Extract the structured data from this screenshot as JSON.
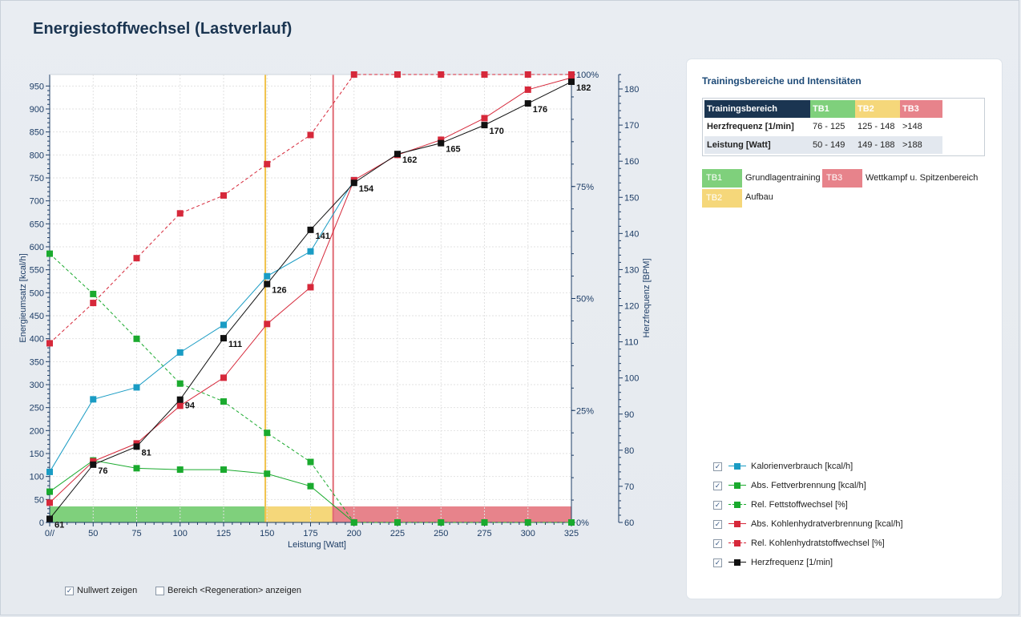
{
  "page": {
    "title": "Energiestoffwechsel (Lastverlauf)"
  },
  "chart_data": {
    "type": "line",
    "x": [
      0,
      50,
      75,
      100,
      125,
      150,
      175,
      200,
      225,
      250,
      275,
      300,
      325
    ],
    "x_tick_labels": [
      "0//",
      "50",
      "75",
      "100",
      "125",
      "150",
      "175",
      "200",
      "225",
      "250",
      "275",
      "300",
      "325"
    ],
    "xlabel": "Leistung [Watt]",
    "ylabel_left": "Energieumsatz [kcal/h]",
    "ylabel_right": "Herzfrequenz [BPM]",
    "ylim_left": [
      0,
      975
    ],
    "left_ticks": [
      "0",
      "50",
      "100",
      "150",
      "200",
      "250",
      "300",
      "350",
      "400",
      "450",
      "500",
      "550",
      "600",
      "650",
      "700",
      "750",
      "800",
      "850",
      "900",
      "950"
    ],
    "ylim_percent": [
      0,
      100
    ],
    "percent_ticks": [
      "0%",
      "25%",
      "50%",
      "75%",
      "100%"
    ],
    "ylim_hr": [
      60,
      184
    ],
    "hr_ticks": [
      "60",
      "70",
      "80",
      "90",
      "100",
      "110",
      "120",
      "130",
      "140",
      "150",
      "160",
      "170",
      "180"
    ],
    "grid": true,
    "zones": [
      {
        "name": "TB1",
        "from": 0,
        "to": 149,
        "color": "#7fd07c"
      },
      {
        "name": "TB2",
        "from": 149,
        "to": 188,
        "color": "#f5d77a"
      },
      {
        "name": "TB3",
        "from": 188,
        "to": 325,
        "color": "#e7838b"
      }
    ],
    "series": [
      {
        "name": "Kalorienverbrauch [kcal/h]",
        "axis": "left",
        "color": "#1a9cc4",
        "dashed": false,
        "x": [
          0,
          50,
          75,
          100,
          125,
          150,
          175,
          200
        ],
        "values": [
          110,
          268,
          294,
          370,
          430,
          536,
          590,
          745
        ]
      },
      {
        "name": "Abs. Fettverbrennung [kcal/h]",
        "axis": "left",
        "color": "#1aaa2e",
        "dashed": false,
        "x": [
          0,
          50,
          75,
          100,
          125,
          150,
          175,
          200
        ],
        "values": [
          67,
          135,
          118,
          115,
          115,
          106,
          79,
          0
        ]
      },
      {
        "name": "Rel. Fettstoffwechsel [%]",
        "axis": "percent",
        "color": "#1aaa2e",
        "dashed": true,
        "x": [
          0,
          50,
          75,
          100,
          125,
          150,
          175,
          200,
          225,
          250,
          275,
          300,
          325
        ],
        "values": [
          60,
          51,
          41,
          31,
          27,
          20,
          13.5,
          0,
          0,
          0,
          0,
          0,
          0
        ]
      },
      {
        "name": "Abs. Kohlenhydratverbrennung [kcal/h]",
        "axis": "left",
        "color": "#d6283a",
        "dashed": false,
        "x": [
          0,
          50,
          75,
          100,
          125,
          150,
          175,
          200,
          225,
          250,
          275,
          300,
          325
        ],
        "values": [
          43,
          133,
          172,
          254,
          315,
          432,
          512,
          745,
          800,
          833,
          880,
          942,
          968
        ]
      },
      {
        "name": "Rel. Kohlenhydratstoffwechsel [%]",
        "axis": "percent",
        "color": "#d6283a",
        "dashed": true,
        "x": [
          0,
          50,
          75,
          100,
          125,
          150,
          175,
          200,
          225,
          250,
          275,
          300,
          325
        ],
        "values": [
          40,
          49,
          59,
          69,
          73,
          80,
          86.5,
          100,
          100,
          100,
          100,
          100,
          100
        ]
      },
      {
        "name": "Herzfrequenz [1/min]",
        "axis": "hr",
        "color": "#111111",
        "dashed": false,
        "x": [
          0,
          50,
          75,
          100,
          125,
          150,
          175,
          200,
          225,
          250,
          275,
          300,
          325
        ],
        "values": [
          61,
          76,
          81,
          94,
          111,
          126,
          141,
          154,
          162,
          165,
          170,
          176,
          182
        ]
      }
    ]
  },
  "bottom_options": [
    {
      "label": "Nullwert zeigen",
      "checked": true
    },
    {
      "label": "Bereich <Regeneration> anzeigen",
      "checked": false
    }
  ],
  "panel": {
    "title": "Trainingsbereiche und Intensitäten",
    "table": {
      "header": [
        "Trainingsbereich",
        "TB1",
        "TB2",
        "TB3"
      ],
      "rows": [
        [
          "Herzfrequenz [1/min]",
          "76 - 125",
          "125 - 148",
          ">148"
        ],
        [
          "Leistung [Watt]",
          "50 - 149",
          "149 - 188",
          ">188"
        ]
      ]
    },
    "zone_legend": [
      {
        "code": "TB1",
        "label": "Grundlagentraining",
        "color": "#7fd07c"
      },
      {
        "code": "TB3",
        "label": "Wettkampf u. Spitzenbereich",
        "color": "#e7838b"
      },
      {
        "code": "TB2",
        "label": "Aufbau",
        "color": "#f5d77a"
      }
    ],
    "series_legend": [
      {
        "label": "Kalorienverbrauch [kcal/h]",
        "checked": true,
        "color": "#1a9cc4",
        "dashed": false
      },
      {
        "label": "Abs. Fettverbrennung [kcal/h]",
        "checked": true,
        "color": "#1aaa2e",
        "dashed": false
      },
      {
        "label": "Rel. Fettstoffwechsel [%]",
        "checked": true,
        "color": "#1aaa2e",
        "dashed": true
      },
      {
        "label": "Abs. Kohlenhydratverbrennung [kcal/h]",
        "checked": true,
        "color": "#d6283a",
        "dashed": false
      },
      {
        "label": "Rel. Kohlenhydratstoffwechsel [%]",
        "checked": true,
        "color": "#d6283a",
        "dashed": true
      },
      {
        "label": "Herzfrequenz [1/min]",
        "checked": true,
        "color": "#111111",
        "dashed": false
      }
    ]
  }
}
